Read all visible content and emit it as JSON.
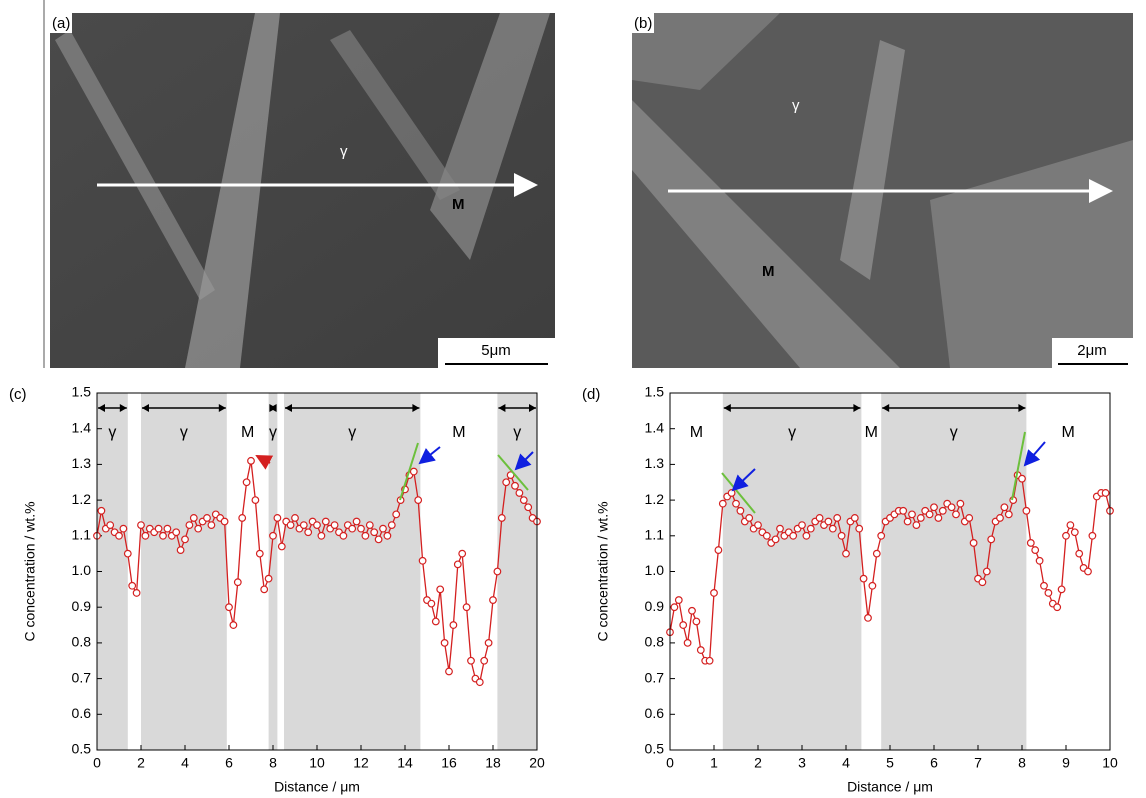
{
  "images": [
    {
      "label": "(a)",
      "phases": [
        "γ",
        "M"
      ],
      "scale_bar": "5μm"
    },
    {
      "label": "(b)",
      "phases": [
        "γ",
        "M"
      ],
      "scale_bar": "2μm"
    }
  ],
  "chart_data": [
    {
      "type": "line",
      "label": "(c)",
      "x_label": "Distance / μm",
      "y_label": "C concentration / wt.%",
      "xlim": [
        0,
        20
      ],
      "ylim": [
        0.5,
        1.5
      ],
      "xticks": [
        0,
        2,
        4,
        6,
        8,
        10,
        12,
        14,
        16,
        18,
        20
      ],
      "yticks": [
        0.5,
        0.6,
        0.7,
        0.8,
        0.9,
        {
          "value": 1,
          "label": "1.0"
        },
        1.1,
        1.2,
        1.3,
        1.4,
        1.5
      ],
      "regions": [
        {
          "start": 0,
          "end": 1.4,
          "label": "γ",
          "shaded": true
        },
        {
          "start": 2,
          "end": 5.9,
          "label": "γ",
          "shaded": true
        },
        {
          "start": 5.9,
          "end": 7.8,
          "label": "M",
          "shaded": false
        },
        {
          "start": 7.8,
          "end": 8.2,
          "label": "γ",
          "shaded": true
        },
        {
          "start": 8.5,
          "end": 14.7,
          "label": "γ",
          "shaded": true
        },
        {
          "start": 14.7,
          "end": 18.2,
          "label": "M",
          "shaded": false
        },
        {
          "start": 18.2,
          "end": 20,
          "label": "γ",
          "shaded": true
        }
      ],
      "series": [
        {
          "color": "#d42020",
          "x": [
            0,
            0.2,
            0.4,
            0.6,
            0.8,
            1,
            1.2,
            1.4,
            1.6,
            1.8,
            2,
            2.2,
            2.4,
            2.6,
            2.8,
            3,
            3.2,
            3.4,
            3.6,
            3.8,
            4,
            4.2,
            4.4,
            4.6,
            4.8,
            5,
            5.2,
            5.4,
            5.6,
            5.8,
            6,
            6.2,
            6.4,
            6.6,
            6.8,
            7,
            7.2,
            7.4,
            7.6,
            7.8,
            8,
            8.2,
            8.4,
            8.6,
            8.8,
            9,
            9.2,
            9.4,
            9.6,
            9.8,
            10,
            10.2,
            10.4,
            10.6,
            10.8,
            11,
            11.2,
            11.4,
            11.6,
            11.8,
            12,
            12.2,
            12.4,
            12.6,
            12.8,
            13,
            13.2,
            13.4,
            13.6,
            13.8,
            14,
            14.2,
            14.4,
            14.6,
            14.8,
            15,
            15.2,
            15.4,
            15.6,
            15.8,
            16,
            16.2,
            16.4,
            16.6,
            16.8,
            17,
            17.2,
            17.4,
            17.6,
            17.8,
            18,
            18.2,
            18.4,
            18.6,
            18.8,
            19,
            19.2,
            19.4,
            19.6,
            19.8,
            20
          ],
          "values": [
            1.1,
            1.17,
            1.12,
            1.13,
            1.11,
            1.1,
            1.12,
            1.05,
            0.96,
            0.94,
            1.13,
            1.1,
            1.12,
            1.11,
            1.12,
            1.1,
            1.12,
            1.1,
            1.11,
            1.06,
            1.09,
            1.13,
            1.15,
            1.12,
            1.14,
            1.15,
            1.13,
            1.16,
            1.15,
            1.14,
            0.9,
            0.85,
            0.97,
            1.15,
            1.25,
            1.31,
            1.2,
            1.05,
            0.95,
            0.98,
            1.1,
            1.15,
            1.07,
            1.14,
            1.13,
            1.15,
            1.12,
            1.13,
            1.11,
            1.14,
            1.13,
            1.1,
            1.14,
            1.12,
            1.13,
            1.11,
            1.1,
            1.13,
            1.12,
            1.14,
            1.12,
            1.1,
            1.13,
            1.11,
            1.09,
            1.12,
            1.1,
            1.13,
            1.16,
            1.2,
            1.23,
            1.27,
            1.28,
            1.2,
            1.03,
            0.92,
            0.91,
            0.86,
            0.95,
            0.8,
            0.72,
            0.85,
            1.02,
            1.05,
            0.9,
            0.75,
            0.7,
            0.69,
            0.75,
            0.8,
            0.92,
            1,
            1.15,
            1.25,
            1.27,
            1.24,
            1.22,
            1.2,
            1.18,
            1.15,
            1.14
          ]
        }
      ]
    },
    {
      "type": "line",
      "label": "(d)",
      "x_label": "Distance / μm",
      "y_label": "C concentration / wt.%",
      "xlim": [
        0,
        10
      ],
      "ylim": [
        0.5,
        1.5
      ],
      "xticks": [
        0,
        1,
        2,
        3,
        4,
        5,
        6,
        7,
        8,
        9,
        10
      ],
      "yticks": [
        0.5,
        0.6,
        0.7,
        0.8,
        0.9,
        {
          "value": 1,
          "label": "1.0"
        },
        1.1,
        1.2,
        1.3,
        1.4,
        1.5
      ],
      "regions": [
        {
          "start": 0,
          "end": 1.2,
          "label": "M",
          "shaded": false
        },
        {
          "start": 1.2,
          "end": 4.35,
          "label": "γ",
          "shaded": true
        },
        {
          "start": 4.35,
          "end": 4.8,
          "label": "M",
          "shaded": false
        },
        {
          "start": 4.8,
          "end": 8.1,
          "label": "γ",
          "shaded": true
        },
        {
          "start": 8.1,
          "end": 10,
          "label": "M",
          "shaded": false
        }
      ],
      "series": [
        {
          "color": "#d42020",
          "x": [
            0,
            0.1,
            0.2,
            0.3,
            0.4,
            0.5,
            0.6,
            0.7,
            0.8,
            0.9,
            1,
            1.1,
            1.2,
            1.3,
            1.4,
            1.5,
            1.6,
            1.7,
            1.8,
            1.9,
            2,
            2.1,
            2.2,
            2.3,
            2.4,
            2.5,
            2.6,
            2.7,
            2.8,
            2.9,
            3,
            3.1,
            3.2,
            3.3,
            3.4,
            3.5,
            3.6,
            3.7,
            3.8,
            3.9,
            4,
            4.1,
            4.2,
            4.3,
            4.4,
            4.5,
            4.6,
            4.7,
            4.8,
            4.9,
            5,
            5.1,
            5.2,
            5.3,
            5.4,
            5.5,
            5.6,
            5.7,
            5.8,
            5.9,
            6,
            6.1,
            6.2,
            6.3,
            6.4,
            6.5,
            6.6,
            6.7,
            6.8,
            6.9,
            7,
            7.1,
            7.2,
            7.3,
            7.4,
            7.5,
            7.6,
            7.7,
            7.8,
            7.9,
            8,
            8.1,
            8.2,
            8.3,
            8.4,
            8.5,
            8.6,
            8.7,
            8.8,
            8.9,
            9,
            9.1,
            9.2,
            9.3,
            9.4,
            9.5,
            9.6,
            9.7,
            9.8,
            9.9,
            10
          ],
          "values": [
            0.83,
            0.9,
            0.92,
            0.85,
            0.8,
            0.89,
            0.86,
            0.78,
            0.75,
            0.75,
            0.94,
            1.06,
            1.19,
            1.21,
            1.22,
            1.19,
            1.17,
            1.14,
            1.15,
            1.12,
            1.13,
            1.11,
            1.1,
            1.08,
            1.09,
            1.12,
            1.1,
            1.11,
            1.1,
            1.12,
            1.13,
            1.1,
            1.12,
            1.14,
            1.15,
            1.13,
            1.14,
            1.12,
            1.15,
            1.1,
            1.05,
            1.14,
            1.15,
            1.12,
            0.98,
            0.87,
            0.96,
            1.05,
            1.1,
            1.14,
            1.15,
            1.16,
            1.17,
            1.17,
            1.14,
            1.16,
            1.13,
            1.15,
            1.17,
            1.16,
            1.18,
            1.15,
            1.17,
            1.19,
            1.18,
            1.16,
            1.19,
            1.14,
            1.15,
            1.08,
            0.98,
            0.97,
            1,
            1.09,
            1.14,
            1.15,
            1.18,
            1.16,
            1.2,
            1.27,
            1.26,
            1.17,
            1.08,
            1.06,
            1.03,
            0.96,
            0.94,
            0.91,
            0.9,
            0.95,
            1.1,
            1.13,
            1.11,
            1.05,
            1.01,
            1,
            1.1,
            1.21,
            1.22,
            1.22,
            1.17
          ]
        }
      ]
    }
  ]
}
